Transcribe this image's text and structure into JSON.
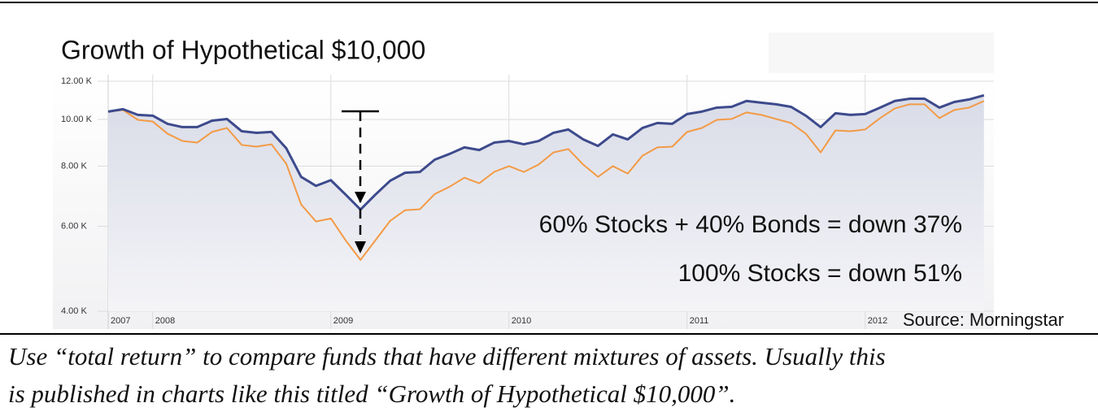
{
  "chart_data": {
    "type": "line",
    "title": "Growth of Hypothetical $10,000",
    "categories": [
      "2007",
      null,
      null,
      "2008",
      null,
      null,
      null,
      null,
      null,
      null,
      null,
      null,
      null,
      null,
      null,
      "2009",
      null,
      null,
      null,
      null,
      null,
      null,
      null,
      null,
      null,
      null,
      null,
      "2010",
      null,
      null,
      null,
      null,
      null,
      null,
      null,
      null,
      null,
      null,
      null,
      "2011",
      null,
      null,
      null,
      null,
      null,
      null,
      null,
      null,
      null,
      null,
      null,
      "2012",
      null,
      null,
      null,
      null,
      null,
      null,
      null,
      null
    ],
    "series": [
      {
        "name": "60% Stocks + 40% Bonds",
        "color": "#3d4a8c",
        "values": [
          10380,
          10500,
          10220,
          10180,
          9790,
          9640,
          9640,
          9940,
          10020,
          9450,
          9380,
          9420,
          8710,
          7600,
          7280,
          7480,
          6980,
          6500,
          6980,
          7460,
          7750,
          7780,
          8250,
          8480,
          8750,
          8640,
          8950,
          9020,
          8880,
          9020,
          9380,
          9530,
          9090,
          8810,
          9310,
          9090,
          9600,
          9830,
          9790,
          10260,
          10380,
          10580,
          10620,
          10920,
          10830,
          10750,
          10620,
          10180,
          9640,
          10300,
          10220,
          10260,
          10580,
          10920,
          11040,
          11040,
          10580,
          10870,
          11000,
          11220
        ]
      },
      {
        "name": "100% Stocks",
        "color": "#f39a45",
        "values": [
          10380,
          10460,
          9980,
          9900,
          9340,
          9020,
          8950,
          9420,
          9600,
          8850,
          8780,
          8880,
          8090,
          6660,
          6140,
          6230,
          5610,
          5110,
          5610,
          6160,
          6480,
          6510,
          7000,
          7250,
          7570,
          7370,
          7780,
          8000,
          7780,
          8060,
          8540,
          8680,
          8060,
          7600,
          8000,
          7720,
          8410,
          8750,
          8780,
          9420,
          9600,
          9980,
          10020,
          10340,
          10220,
          10020,
          9830,
          9340,
          8540,
          9490,
          9450,
          9530,
          10060,
          10540,
          10750,
          10750,
          10060,
          10460,
          10580,
          10920
        ]
      }
    ],
    "ylim": [
      4000,
      12000
    ],
    "yticks": [
      {
        "value": 4000,
        "label": "4.00 K"
      },
      {
        "value": 6000,
        "label": "6.00 K"
      },
      {
        "value": 8000,
        "label": "8.00 K"
      },
      {
        "value": 10000,
        "label": "10.00 K"
      },
      {
        "value": 12000,
        "label": "12.00 K"
      }
    ],
    "log_scale": true,
    "grid": true,
    "annotations": [
      "60% Stocks + 40% Bonds = down 37%",
      "100% Stocks = down 51%"
    ],
    "source": "Source: Morningstar"
  },
  "caption": [
    "Use “total return” to compare funds that have different mixtures of assets. Usually this",
    "is published in charts like this titled “Growth of Hypothetical $10,000”."
  ]
}
